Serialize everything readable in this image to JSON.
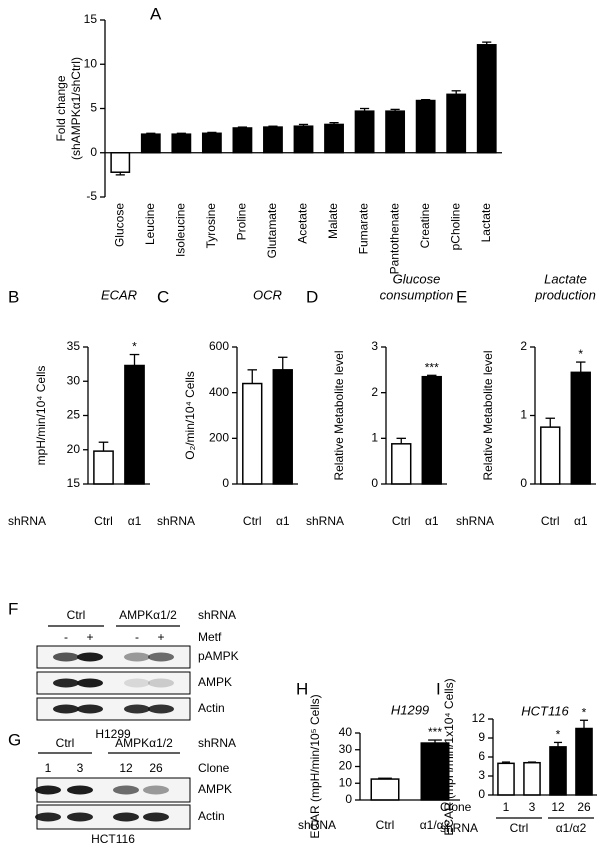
{
  "chart_data": [
    {
      "type": "bar",
      "panel": "A",
      "ylabel": [
        "Fold change",
        "(shAMPKα1/shCtrl)"
      ],
      "categories": [
        "Glucose",
        "Leucine",
        "Isoleucine",
        "Tyrosine",
        "Proline",
        "Glutamate",
        "Acetate",
        "Malate",
        "Fumarate",
        "Pantothenate",
        "Creatine",
        "pCholine",
        "Lactate"
      ],
      "values": [
        -2.2,
        2.1,
        2.1,
        2.2,
        2.8,
        2.9,
        3.0,
        3.2,
        4.7,
        4.7,
        5.9,
        6.6,
        12.2
      ],
      "errors": [
        0.3,
        0.1,
        0.1,
        0.1,
        0.1,
        0.1,
        0.2,
        0.2,
        0.3,
        0.2,
        0.1,
        0.4,
        0.3
      ],
      "colors": [
        "#ffffff",
        "#000000",
        "#000000",
        "#000000",
        "#000000",
        "#000000",
        "#000000",
        "#000000",
        "#000000",
        "#000000",
        "#000000",
        "#000000",
        "#000000"
      ],
      "ylim": [
        -5,
        15
      ],
      "yticks": [
        -5,
        0,
        5,
        10,
        15
      ]
    },
    {
      "type": "bar",
      "panel": "B",
      "title": "ECAR",
      "ylabel": "mpH/min/10⁴ Cells",
      "group_label": "shRNA",
      "categories": [
        "Ctrl",
        "α1"
      ],
      "values": [
        19.8,
        32.3
      ],
      "errors": [
        1.3,
        1.6
      ],
      "significance": [
        null,
        "*"
      ],
      "colors": [
        "#ffffff",
        "#000000"
      ],
      "ylim": [
        15,
        35
      ],
      "yticks": [
        15,
        20,
        25,
        30,
        35
      ]
    },
    {
      "type": "bar",
      "panel": "C",
      "title": "OCR",
      "ylabel": "O₂/min/10⁴ Cells",
      "group_label": "shRNA",
      "categories": [
        "Ctrl",
        "α1"
      ],
      "values": [
        440,
        500
      ],
      "errors": [
        60,
        55
      ],
      "colors": [
        "#ffffff",
        "#000000"
      ],
      "ylim": [
        0,
        600
      ],
      "yticks": [
        0,
        200,
        400,
        600
      ]
    },
    {
      "type": "bar",
      "panel": "D",
      "title": [
        "Glucose",
        "consumption"
      ],
      "ylabel": "Relative Metabolite level",
      "group_label": "shRNA",
      "categories": [
        "Ctrl",
        "α1"
      ],
      "values": [
        0.88,
        2.35
      ],
      "errors": [
        0.12,
        0.03
      ],
      "significance": [
        null,
        "***"
      ],
      "colors": [
        "#ffffff",
        "#000000"
      ],
      "ylim": [
        0,
        3
      ],
      "yticks": [
        0,
        1,
        2,
        3
      ]
    },
    {
      "type": "bar",
      "panel": "E",
      "title": [
        "Lactate",
        "production"
      ],
      "ylabel": "Relative Metabolite level",
      "group_label": "shRNA",
      "categories": [
        "Ctrl",
        "α1"
      ],
      "values": [
        0.83,
        1.63
      ],
      "errors": [
        0.13,
        0.15
      ],
      "significance": [
        null,
        "*"
      ],
      "colors": [
        "#ffffff",
        "#000000"
      ],
      "ylim": [
        0,
        2
      ],
      "yticks": [
        0,
        1,
        2
      ]
    },
    {
      "type": "bar",
      "panel": "H",
      "title": "H1299",
      "ylabel": "ECAR (mpH/min/10⁵ Cells)",
      "group_label": "shRNA",
      "categories": [
        "Ctrl",
        "α1/α2"
      ],
      "values": [
        12.5,
        34
      ],
      "errors": [
        0.5,
        1.8
      ],
      "significance": [
        null,
        "***"
      ],
      "colors": [
        "#ffffff",
        "#000000"
      ],
      "ylim": [
        0,
        40
      ],
      "yticks": [
        0,
        10,
        20,
        30,
        40
      ]
    },
    {
      "type": "bar",
      "panel": "I",
      "title": "HCT116",
      "ylabel": "ECAR (mpH/min/1x10⁴ Cells)",
      "x_label": "Clone",
      "group_label": "shRNA",
      "groups": [
        "Ctrl",
        "α1/α2"
      ],
      "categories": [
        "1",
        "3",
        "12",
        "26"
      ],
      "values": [
        5.0,
        5.1,
        7.6,
        10.5
      ],
      "errors": [
        0.2,
        0.1,
        0.7,
        1.3
      ],
      "significance": [
        null,
        null,
        "*",
        "*"
      ],
      "colors": [
        "#ffffff",
        "#ffffff",
        "#000000",
        "#000000"
      ],
      "ylim": [
        0,
        12
      ],
      "yticks": [
        0,
        3,
        6,
        9,
        12
      ]
    }
  ],
  "blots": [
    {
      "panel": "F",
      "groups": [
        "Ctrl",
        "AMPKα1/2"
      ],
      "group_label": "shRNA",
      "lanes": [
        "-",
        "+",
        "-",
        "+"
      ],
      "lane_label": "Metf",
      "rows": [
        "pAMPK",
        "AMPK",
        "Actin"
      ],
      "caption": "H1299"
    },
    {
      "panel": "G",
      "groups": [
        "Ctrl",
        "AMPKα1/2"
      ],
      "group_label": "shRNA",
      "lanes": [
        "1",
        "3",
        "12",
        "26"
      ],
      "lane_label": "Clone",
      "rows": [
        "AMPK",
        "Actin"
      ],
      "caption": "HCT116"
    }
  ]
}
